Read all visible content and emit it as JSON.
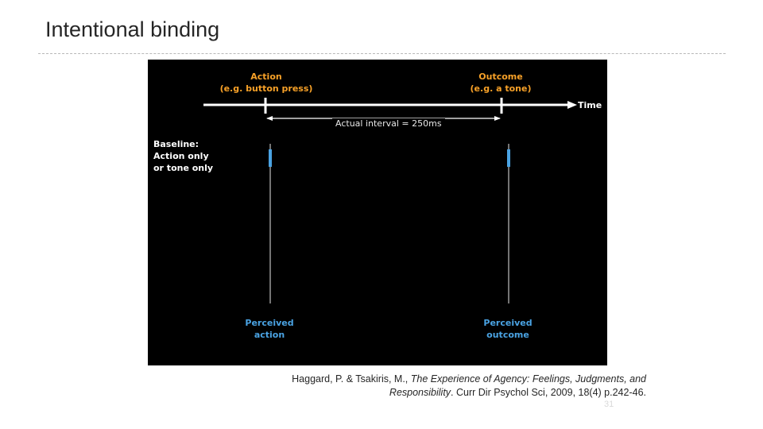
{
  "slide": {
    "title": "Intentional binding",
    "page_number": "31"
  },
  "figure": {
    "action_title": "Action",
    "action_example": "(e.g. button press)",
    "outcome_title": "Outcome",
    "outcome_example": "(e.g. a tone)",
    "time_label": "Time",
    "interval_label": "Actual interval = 250ms",
    "baseline_lines": [
      "Baseline:",
      "Action only",
      "or tone only"
    ],
    "perceived_action": [
      "Perceived",
      "action"
    ],
    "perceived_outcome": [
      "Perceived",
      "outcome"
    ],
    "colors": {
      "background": "#000000",
      "heading": "#f7a128",
      "marker": "#4aa3e3",
      "line": "#ffffff"
    }
  },
  "citation": {
    "authors": "Haggard, P. & Tsakiris, M., ",
    "title_part1": "The Experience of Agency: Feelings, Judgments, and",
    "title_part2": "Responsibility",
    "source": ". Curr Dir Psychol Sci, 2009, 18(4) p.242-46."
  }
}
